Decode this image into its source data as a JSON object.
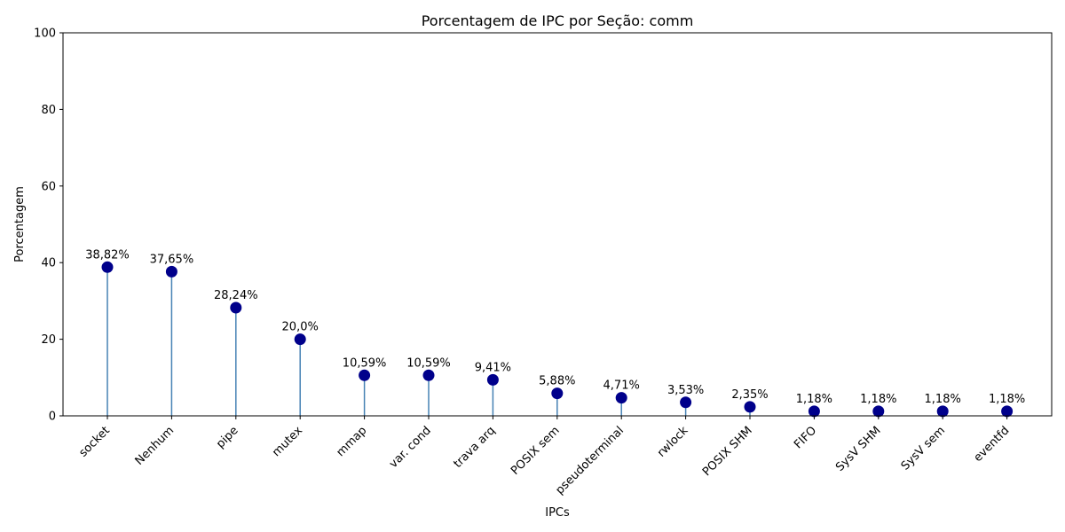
{
  "chart_data": {
    "type": "lollipop",
    "title": "Porcentagem de IPC por Seção: comm",
    "xlabel": "IPCs",
    "ylabel": "Porcentagem",
    "ylim": [
      0,
      100
    ],
    "yticks": [
      0,
      20,
      40,
      60,
      80,
      100
    ],
    "grid": false,
    "categories": [
      "socket",
      "Nenhum",
      "pipe",
      "mutex",
      "mmap",
      "var. cond",
      "trava arq",
      "POSIX sem",
      "pseudoterminal",
      "rwlock",
      "POSIX SHM",
      "FIFO",
      "SysV SHM",
      "SysV sem",
      "eventfd"
    ],
    "values": [
      38.82,
      37.65,
      28.24,
      20.0,
      10.59,
      10.59,
      9.41,
      5.88,
      4.71,
      3.53,
      2.35,
      1.18,
      1.18,
      1.18,
      1.18
    ],
    "data_labels": [
      "38,82%",
      "37,65%",
      "28,24%",
      "20,0%",
      "10,59%",
      "10,59%",
      "9,41%",
      "5,88%",
      "4,71%",
      "3,53%",
      "2,35%",
      "1,18%",
      "1,18%",
      "1,18%",
      "1,18%"
    ],
    "colors": {
      "marker": "#00008b",
      "stem": "#4682b4",
      "axis": "#000000"
    }
  }
}
